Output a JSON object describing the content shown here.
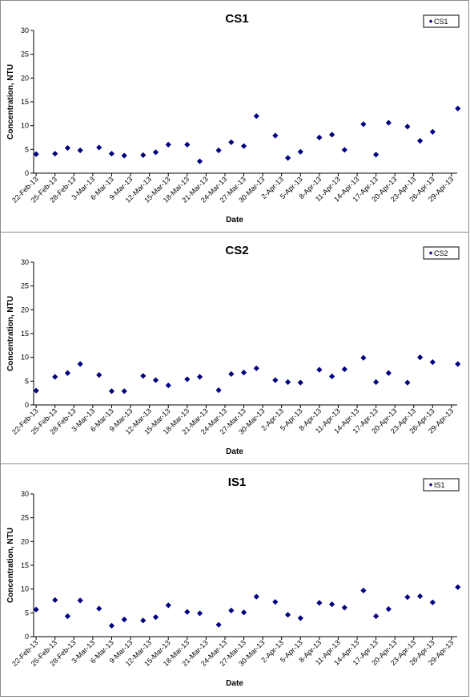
{
  "chart_data": [
    {
      "type": "scatter",
      "title": "CS1",
      "xlabel": "Date",
      "ylabel": "Concentration, NTU",
      "ylim": [
        0,
        30
      ],
      "yticks": [
        "0",
        "5",
        "10",
        "15",
        "20",
        "25",
        "30"
      ],
      "x_ticks": [
        "22-Feb-13",
        "25-Feb-13",
        "28-Feb-13",
        "3-Mar-13",
        "6-Mar-13",
        "9-Mar-13",
        "12-Mar-13",
        "15-Mar-13",
        "18-Mar-13",
        "21-Mar-13",
        "24-Mar-13",
        "27-Mar-13",
        "30-Mar-13",
        "2-Apr-13",
        "5-Apr-13",
        "8-Apr-13",
        "11-Apr-13",
        "14-Apr-13",
        "17-Apr-13",
        "20-Apr-13",
        "23-Apr-13",
        "26-Apr-13",
        "29-Apr-13"
      ],
      "legend": "top-right",
      "series": [
        {
          "name": "CS1",
          "color": "#000080",
          "points": [
            [
              "22-Feb-13",
              4.0
            ],
            [
              "25-Feb-13",
              4.1
            ],
            [
              "27-Feb-13",
              5.3
            ],
            [
              "1-Mar-13",
              4.8
            ],
            [
              "4-Mar-13",
              5.4
            ],
            [
              "6-Mar-13",
              4.1
            ],
            [
              "8-Mar-13",
              3.7
            ],
            [
              "11-Mar-13",
              3.8
            ],
            [
              "13-Mar-13",
              4.4
            ],
            [
              "15-Mar-13",
              6.0
            ],
            [
              "18-Mar-13",
              6.0
            ],
            [
              "20-Mar-13",
              2.5
            ],
            [
              "23-Mar-13",
              4.8
            ],
            [
              "25-Mar-13",
              6.5
            ],
            [
              "27-Mar-13",
              5.7
            ],
            [
              "29-Mar-13",
              12.0
            ],
            [
              "1-Apr-13",
              7.9
            ],
            [
              "3-Apr-13",
              3.2
            ],
            [
              "5-Apr-13",
              4.5
            ],
            [
              "8-Apr-13",
              7.5
            ],
            [
              "10-Apr-13",
              8.1
            ],
            [
              "12-Apr-13",
              4.9
            ],
            [
              "15-Apr-13",
              10.3
            ],
            [
              "17-Apr-13",
              3.9
            ],
            [
              "19-Apr-13",
              10.6
            ],
            [
              "22-Apr-13",
              9.8
            ],
            [
              "24-Apr-13",
              6.8
            ],
            [
              "26-Apr-13",
              8.7
            ],
            [
              "30-Apr-13",
              13.6
            ]
          ]
        }
      ]
    },
    {
      "type": "scatter",
      "title": "CS2",
      "xlabel": "Date",
      "ylabel": "Concentration, NTU",
      "ylim": [
        0,
        30
      ],
      "yticks": [
        "0",
        "5",
        "10",
        "15",
        "20",
        "25",
        "30"
      ],
      "x_ticks": [
        "22-Feb-13",
        "25-Feb-13",
        "28-Feb-13",
        "3-Mar-13",
        "6-Mar-13",
        "9-Mar-13",
        "12-Mar-13",
        "15-Mar-13",
        "18-Mar-13",
        "21-Mar-13",
        "24-Mar-13",
        "27-Mar-13",
        "30-Mar-13",
        "2-Apr-13",
        "5-Apr-13",
        "8-Apr-13",
        "11-Apr-13",
        "14-Apr-13",
        "17-Apr-13",
        "20-Apr-13",
        "23-Apr-13",
        "26-Apr-13",
        "29-Apr-13"
      ],
      "legend": "top-right",
      "series": [
        {
          "name": "CS2",
          "color": "#000080",
          "points": [
            [
              "22-Feb-13",
              3.0
            ],
            [
              "25-Feb-13",
              5.9
            ],
            [
              "27-Feb-13",
              6.7
            ],
            [
              "1-Mar-13",
              8.6
            ],
            [
              "4-Mar-13",
              6.3
            ],
            [
              "6-Mar-13",
              2.9
            ],
            [
              "8-Mar-13",
              2.9
            ],
            [
              "11-Mar-13",
              6.1
            ],
            [
              "13-Mar-13",
              5.2
            ],
            [
              "15-Mar-13",
              4.1
            ],
            [
              "18-Mar-13",
              5.4
            ],
            [
              "20-Mar-13",
              5.9
            ],
            [
              "23-Mar-13",
              3.1
            ],
            [
              "25-Mar-13",
              6.5
            ],
            [
              "27-Mar-13",
              6.8
            ],
            [
              "29-Mar-13",
              7.7
            ],
            [
              "1-Apr-13",
              5.2
            ],
            [
              "3-Apr-13",
              4.8
            ],
            [
              "5-Apr-13",
              4.7
            ],
            [
              "8-Apr-13",
              7.4
            ],
            [
              "10-Apr-13",
              6.0
            ],
            [
              "12-Apr-13",
              7.5
            ],
            [
              "15-Apr-13",
              9.9
            ],
            [
              "17-Apr-13",
              4.8
            ],
            [
              "19-Apr-13",
              6.7
            ],
            [
              "22-Apr-13",
              4.7
            ],
            [
              "24-Apr-13",
              10.0
            ],
            [
              "26-Apr-13",
              9.0
            ],
            [
              "30-Apr-13",
              8.6
            ]
          ]
        }
      ]
    },
    {
      "type": "scatter",
      "title": "IS1",
      "xlabel": "Date",
      "ylabel": "Concentration, NTU",
      "ylim": [
        0,
        30
      ],
      "yticks": [
        "0",
        "5",
        "10",
        "15",
        "20",
        "25",
        "30"
      ],
      "x_ticks": [
        "22-Feb-13",
        "25-Feb-13",
        "28-Feb-13",
        "3-Mar-13",
        "6-Mar-13",
        "9-Mar-13",
        "12-Mar-13",
        "15-Mar-13",
        "18-Mar-13",
        "21-Mar-13",
        "24-Mar-13",
        "27-Mar-13",
        "30-Mar-13",
        "2-Apr-13",
        "5-Apr-13",
        "8-Apr-13",
        "11-Apr-13",
        "14-Apr-13",
        "17-Apr-13",
        "20-Apr-13",
        "23-Apr-13",
        "26-Apr-13",
        "29-Apr-13"
      ],
      "legend": "top-right",
      "series": [
        {
          "name": "IS1",
          "color": "#000080",
          "points": [
            [
              "22-Feb-13",
              5.7
            ],
            [
              "25-Feb-13",
              7.7
            ],
            [
              "27-Feb-13",
              4.3
            ],
            [
              "1-Mar-13",
              7.6
            ],
            [
              "4-Mar-13",
              5.9
            ],
            [
              "6-Mar-13",
              2.3
            ],
            [
              "8-Mar-13",
              3.6
            ],
            [
              "11-Mar-13",
              3.4
            ],
            [
              "13-Mar-13",
              4.1
            ],
            [
              "15-Mar-13",
              6.6
            ],
            [
              "18-Mar-13",
              5.2
            ],
            [
              "20-Mar-13",
              4.9
            ],
            [
              "23-Mar-13",
              2.5
            ],
            [
              "25-Mar-13",
              5.5
            ],
            [
              "27-Mar-13",
              5.1
            ],
            [
              "29-Mar-13",
              8.4
            ],
            [
              "1-Apr-13",
              7.3
            ],
            [
              "3-Apr-13",
              4.6
            ],
            [
              "5-Apr-13",
              3.9
            ],
            [
              "8-Apr-13",
              7.1
            ],
            [
              "10-Apr-13",
              6.8
            ],
            [
              "12-Apr-13",
              6.1
            ],
            [
              "15-Apr-13",
              9.7
            ],
            [
              "17-Apr-13",
              4.3
            ],
            [
              "19-Apr-13",
              5.8
            ],
            [
              "22-Apr-13",
              8.3
            ],
            [
              "24-Apr-13",
              8.5
            ],
            [
              "26-Apr-13",
              7.2
            ],
            [
              "30-Apr-13",
              10.4
            ]
          ]
        }
      ]
    }
  ]
}
